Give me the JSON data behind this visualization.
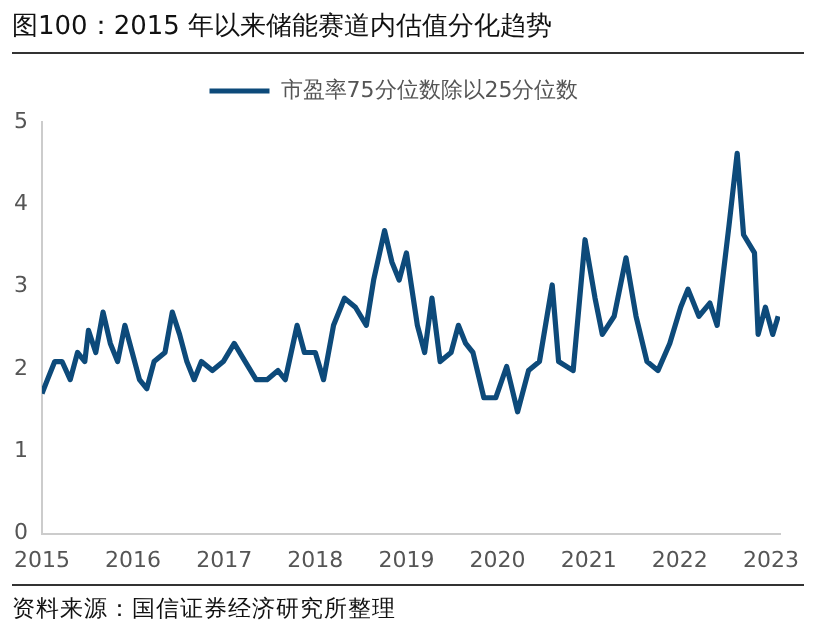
{
  "chart_data": {
    "type": "line",
    "title": "图100：2015 年以来储能赛道内估值分化趋势",
    "annotations": [
      "资料来源：国信证券经济研究所整理"
    ],
    "series": [
      {
        "name": "市盈率75分位数除以25分位数",
        "color": "#0d4a7a",
        "x": [
          2015.0,
          2015.06,
          2015.14,
          2015.22,
          2015.31,
          2015.39,
          2015.47,
          2015.51,
          2015.59,
          2015.67,
          2015.75,
          2015.83,
          2015.91,
          2015.99,
          2016.07,
          2016.15,
          2016.23,
          2016.35,
          2016.43,
          2016.51,
          2016.59,
          2016.67,
          2016.75,
          2016.87,
          2016.99,
          2017.11,
          2017.23,
          2017.35,
          2017.47,
          2017.59,
          2017.67,
          2017.8,
          2017.88,
          2018.0,
          2018.09,
          2018.2,
          2018.32,
          2018.44,
          2018.56,
          2018.64,
          2018.76,
          2018.84,
          2018.92,
          2019.0,
          2019.12,
          2019.2,
          2019.28,
          2019.37,
          2019.49,
          2019.57,
          2019.65,
          2019.73,
          2019.85,
          2019.98,
          2020.1,
          2020.22,
          2020.34,
          2020.46,
          2020.6,
          2020.67,
          2020.83,
          2020.96,
          2021.07,
          2021.15,
          2021.28,
          2021.41,
          2021.52,
          2021.64,
          2021.76,
          2021.89,
          2022.01,
          2022.09,
          2022.21,
          2022.33,
          2022.41,
          2022.54,
          2022.63,
          2022.7,
          2022.82,
          2022.86,
          2022.94,
          2023.02,
          2023.08
        ],
        "values": [
          1.7,
          1.87,
          2.09,
          2.09,
          1.87,
          2.2,
          2.09,
          2.47,
          2.2,
          2.69,
          2.31,
          2.09,
          2.53,
          2.2,
          1.87,
          1.76,
          2.09,
          2.2,
          2.69,
          2.42,
          2.09,
          1.87,
          2.09,
          1.98,
          2.09,
          2.31,
          2.09,
          1.87,
          1.87,
          1.98,
          1.87,
          2.53,
          2.2,
          2.2,
          1.87,
          2.53,
          2.86,
          2.75,
          2.53,
          3.08,
          3.68,
          3.3,
          3.08,
          3.41,
          2.53,
          2.2,
          2.86,
          2.09,
          2.2,
          2.53,
          2.31,
          2.2,
          1.65,
          1.65,
          2.03,
          1.48,
          1.98,
          2.09,
          3.02,
          2.09,
          1.98,
          3.57,
          2.86,
          2.42,
          2.64,
          3.35,
          2.64,
          2.09,
          1.98,
          2.31,
          2.75,
          2.97,
          2.64,
          2.8,
          2.53,
          3.74,
          4.62,
          3.63,
          3.41,
          2.42,
          2.75,
          2.42,
          2.64
        ]
      }
    ],
    "xlim": [
      2015,
      2023.1
    ],
    "xticks": [
      2015,
      2016,
      2017,
      2018,
      2019,
      2020,
      2021,
      2022,
      2023
    ],
    "ylim": [
      0,
      5
    ],
    "yticks": [
      0,
      1,
      2,
      3,
      4,
      5
    ],
    "grid": false,
    "legend": "top",
    "marker": "none",
    "line_style": "solid"
  }
}
